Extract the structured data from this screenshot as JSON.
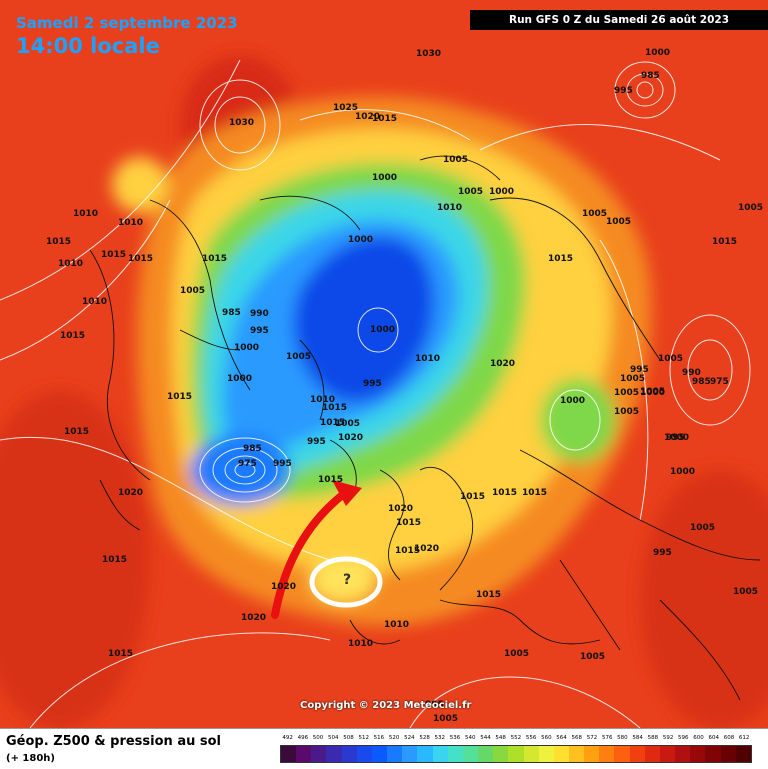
{
  "header": {
    "date": "Samedi 2 septembre 2023",
    "time": "14:00 locale",
    "run": "Run GFS 0 Z du Samedi 26 août 2023"
  },
  "copyright": "Copyright © 2023 Meteociel.fr",
  "legend": {
    "title": "Géop. Z500 & pression au sol",
    "subtitle": "(+ 180h)",
    "values": [
      "492",
      "496",
      "500",
      "504",
      "508",
      "512",
      "516",
      "520",
      "524",
      "528",
      "532",
      "536",
      "540",
      "544",
      "548",
      "552",
      "556",
      "560",
      "564",
      "568",
      "572",
      "576",
      "580",
      "584",
      "588",
      "592",
      "596",
      "600",
      "604",
      "608",
      "612"
    ],
    "colors": [
      "#3a0a3a",
      "#5a0a6a",
      "#4a1a8a",
      "#3a2ab0",
      "#2a3ad0",
      "#1a4aee",
      "#0a5aff",
      "#1a7aff",
      "#2a9aff",
      "#2ab8ff",
      "#3ad4f0",
      "#44e0c8",
      "#52e09a",
      "#66d86a",
      "#88d840",
      "#aee02a",
      "#d4e830",
      "#f0f040",
      "#ffe030",
      "#ffc020",
      "#ffa010",
      "#ff8010",
      "#ff6010",
      "#f04010",
      "#e02a10",
      "#c81a10",
      "#b01010",
      "#980808",
      "#800404",
      "#680202",
      "#500000"
    ]
  },
  "pressure_labels": [
    "1030",
    "1030",
    "1025",
    "1015",
    "1020",
    "1000",
    "985",
    "995",
    "1005",
    "1000",
    "1005",
    "1010",
    "1000",
    "1010",
    "1015",
    "1015",
    "1010",
    "1010",
    "1015",
    "1010",
    "1015",
    "1000",
    "1005",
    "1005",
    "1005",
    "1015",
    "985",
    "990",
    "995",
    "1000",
    "1005",
    "1010",
    "1000",
    "1015",
    "1005",
    "1010",
    "1020",
    "1000",
    "1005",
    "990",
    "995",
    "985",
    "975",
    "1005",
    "1005",
    "1005",
    "1000",
    "1015",
    "1015",
    "995",
    "1020",
    "985",
    "975",
    "995",
    "1000",
    "1000",
    "995",
    "1020",
    "1015",
    "1015",
    "1015",
    "1020",
    "1015",
    "1015",
    "1005",
    "1015",
    "1015",
    "1020",
    "1010",
    "1005",
    "995",
    "1010",
    "1005",
    "1005",
    "1020",
    "1015",
    "995",
    "1005",
    "1015",
    "995",
    "1000",
    "1005",
    "1015",
    "1015",
    "1015",
    "1020",
    "1005"
  ],
  "annotation": {
    "question_mark": "?",
    "arrow_color": "#e81010",
    "circle_color": "#ffffff"
  }
}
